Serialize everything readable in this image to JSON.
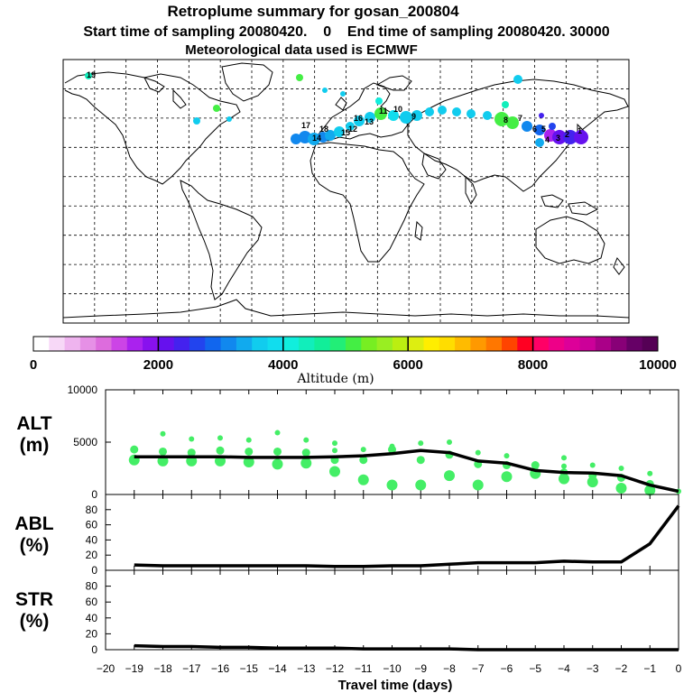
{
  "title": "Retroplume summary for gosan_200804",
  "header_line": "Start time of sampling 20080420.    0    End time of sampling 20080420. 30000",
  "met_line": "Meteorological data used is ECMWF",
  "colorbar": {
    "ticks": [
      "0",
      "2000",
      "4000",
      "6000",
      "8000",
      "10000"
    ],
    "label": "Altitude  (m)",
    "colors": [
      "#ffffff",
      "#f7d8f7",
      "#efb4ef",
      "#e690e6",
      "#dd6cdd",
      "#cc44e6",
      "#aa22ee",
      "#8811ee",
      "#6611ee",
      "#4422ee",
      "#2244ee",
      "#1166ee",
      "#1188ee",
      "#11aaee",
      "#11ccee",
      "#11ddee",
      "#11eedd",
      "#11eebb",
      "#11ee99",
      "#22ee77",
      "#44ee44",
      "#77ee22",
      "#99ee22",
      "#bbee11",
      "#ddee11",
      "#ffee00",
      "#ffdd00",
      "#ffbb00",
      "#ff9900",
      "#ff7700",
      "#ff4400",
      "#ff0022",
      "#ff0066",
      "#ee0088",
      "#dd0099",
      "#cc0099",
      "#aa0088",
      "#880077",
      "#660066",
      "#550055"
    ]
  },
  "map_labels": [
    {
      "t": "19",
      "c": "#11eebb"
    },
    {
      "t": "18",
      "c": "#11ccee"
    },
    {
      "t": "17",
      "c": "#11ccee"
    },
    {
      "t": "16",
      "c": "#11ccee"
    },
    {
      "t": "15",
      "c": "#11aaee"
    },
    {
      "t": "14",
      "c": "#11ccee"
    },
    {
      "t": "13",
      "c": "#11ccee"
    },
    {
      "t": "12",
      "c": "#11ccee"
    },
    {
      "t": "11",
      "c": "#11ddee"
    },
    {
      "t": "10",
      "c": "#44ee44"
    },
    {
      "t": "9",
      "c": "#44ee44"
    },
    {
      "t": "8",
      "c": "#44ee44"
    },
    {
      "t": "7",
      "c": "#11aaee"
    },
    {
      "t": "6",
      "c": "#1188ee"
    },
    {
      "t": "5",
      "c": "#1166ee"
    },
    {
      "t": "4",
      "c": "#aa22ee"
    },
    {
      "t": "3",
      "c": "#6611ee"
    },
    {
      "t": "2",
      "c": "#4422ee"
    },
    {
      "t": "1",
      "c": "#2244ee"
    }
  ],
  "panels": {
    "alt": {
      "label_top": "ALT",
      "label_bottom": "(m)"
    },
    "abl": {
      "label_top": "ABL",
      "label_bottom": "(%)"
    },
    "str": {
      "label_top": "STR",
      "label_bottom": "(%)"
    }
  },
  "chart_data": [
    {
      "type": "line",
      "name": "ALT",
      "ylabel": "(m)",
      "ylim": [
        0,
        10000
      ],
      "yticks": [
        0,
        5000,
        10000
      ],
      "x": [
        -19,
        -18,
        -17,
        -16,
        -15,
        -14,
        -13,
        -12,
        -11,
        -10,
        -9,
        -8,
        -7,
        -6,
        -5,
        -4,
        -3,
        -2,
        -1,
        0
      ],
      "values": [
        3600,
        3600,
        3600,
        3600,
        3550,
        3550,
        3550,
        3600,
        3700,
        3900,
        4200,
        4000,
        3200,
        3000,
        2300,
        2100,
        2050,
        1800,
        900,
        300
      ],
      "scatter": [
        {
          "x": -19,
          "y": [
            3300,
            4300
          ]
        },
        {
          "x": -18,
          "y": [
            3200,
            4100,
            5800
          ]
        },
        {
          "x": -17,
          "y": [
            3200,
            4000,
            5300
          ]
        },
        {
          "x": -16,
          "y": [
            3200,
            4200,
            5400
          ]
        },
        {
          "x": -15,
          "y": [
            3100,
            4100,
            5200
          ]
        },
        {
          "x": -14,
          "y": [
            2900,
            4100,
            5900
          ]
        },
        {
          "x": -13,
          "y": [
            3000,
            4000,
            5200
          ]
        },
        {
          "x": -12,
          "y": [
            2200,
            3300,
            4200,
            4900
          ]
        },
        {
          "x": -11,
          "y": [
            1400,
            3300,
            4300
          ]
        },
        {
          "x": -10,
          "y": [
            900,
            4300,
            4600
          ]
        },
        {
          "x": -9,
          "y": [
            900,
            3300,
            4900
          ]
        },
        {
          "x": -8,
          "y": [
            1800,
            3800,
            5000
          ]
        },
        {
          "x": -7,
          "y": [
            900,
            2900,
            4000
          ]
        },
        {
          "x": -6,
          "y": [
            1700,
            2800,
            3700
          ]
        },
        {
          "x": -5,
          "y": [
            2000,
            2800
          ]
        },
        {
          "x": -4,
          "y": [
            1500,
            2100,
            2700,
            3500
          ]
        },
        {
          "x": -3,
          "y": [
            1200,
            1800,
            2800
          ]
        },
        {
          "x": -2,
          "y": [
            600,
            1600,
            2500
          ]
        },
        {
          "x": -1,
          "y": [
            400,
            1000,
            2000
          ]
        },
        {
          "x": 0,
          "y": [
            300
          ]
        }
      ]
    },
    {
      "type": "line",
      "name": "ABL",
      "ylabel": "(%)",
      "ylim": [
        0,
        100
      ],
      "yticks": [
        0,
        20,
        40,
        60,
        80
      ],
      "x": [
        -19,
        -18,
        -17,
        -16,
        -15,
        -14,
        -13,
        -12,
        -11,
        -10,
        -9,
        -8,
        -7,
        -6,
        -5,
        -4,
        -3,
        -2,
        -1,
        0
      ],
      "values": [
        7,
        6,
        6,
        6,
        6,
        6,
        6,
        5,
        5,
        6,
        6,
        8,
        10,
        10,
        10,
        12,
        11,
        11,
        35,
        85
      ]
    },
    {
      "type": "line",
      "name": "STR",
      "ylabel": "(%)",
      "ylim": [
        0,
        100
      ],
      "yticks": [
        0,
        20,
        40,
        60,
        80
      ],
      "x": [
        -19,
        -18,
        -17,
        -16,
        -15,
        -14,
        -13,
        -12,
        -11,
        -10,
        -9,
        -8,
        -7,
        -6,
        -5,
        -4,
        -3,
        -2,
        -1,
        0
      ],
      "values": [
        5,
        4,
        4,
        3,
        3,
        2,
        2,
        2,
        1,
        1,
        1,
        1,
        0,
        0,
        0,
        0,
        0,
        0,
        0,
        0
      ],
      "xlabel": "Travel time (days)",
      "xlim": [
        -20,
        0
      ],
      "xticks": [
        -20,
        -19,
        -18,
        -17,
        -16,
        -15,
        -14,
        -13,
        -12,
        -11,
        -10,
        -9,
        -8,
        -7,
        -6,
        -5,
        -4,
        -3,
        -2,
        -1,
        0
      ]
    }
  ]
}
